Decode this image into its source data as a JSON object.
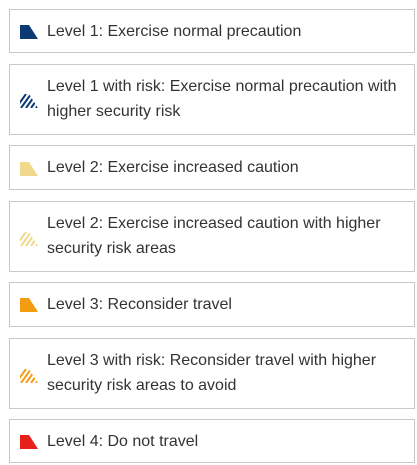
{
  "legend": {
    "items": [
      {
        "label": "Level 1: Exercise normal precaution",
        "color": "#0b3a73",
        "icon": "level-1-flag-icon",
        "pattern": "solid"
      },
      {
        "label": "Level 1 with risk: Exercise normal precaution with higher security risk",
        "color": "#0b3a73",
        "icon": "level-1-risk-hatched-flag-icon",
        "pattern": "hatched"
      },
      {
        "label": "Level 2: Exercise increased caution",
        "color": "#f0d98c",
        "icon": "level-2-flag-icon",
        "pattern": "solid"
      },
      {
        "label": "Level 2: Exercise increased caution with higher security risk areas",
        "color": "#f0d98c",
        "icon": "level-2-risk-hatched-flag-icon",
        "pattern": "hatched"
      },
      {
        "label": "Level 3: Reconsider travel",
        "color": "#f39c12",
        "icon": "level-3-flag-icon",
        "pattern": "solid"
      },
      {
        "label": "Level 3 with risk: Reconsider travel with higher security risk areas to avoid",
        "color": "#f39c12",
        "icon": "level-3-risk-hatched-flag-icon",
        "pattern": "hatched"
      },
      {
        "label": "Level 4: Do not travel",
        "color": "#e8201c",
        "icon": "level-4-flag-icon",
        "pattern": "solid"
      }
    ]
  }
}
